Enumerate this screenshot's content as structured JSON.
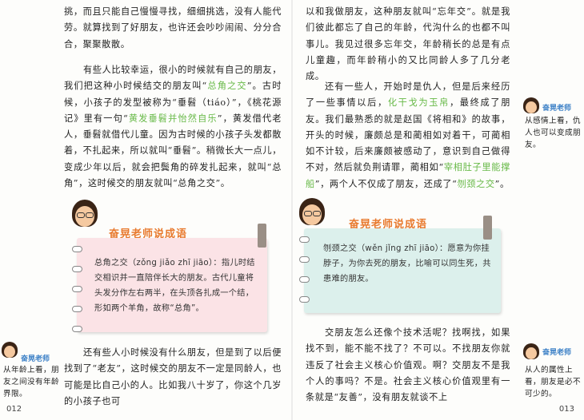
{
  "left_page": {
    "para1": "挑，而且只能自己慢慢寻找，细细挑选，没有人能代劳。就算找到了好朋友，也许还会吵吵闹闹、分分合合，聚聚散散。",
    "para2_a": "有些人比较幸运，很小的时候就有自己的朋友，我们把这种小时候结交的朋友叫“",
    "para2_hl1": "总角之交",
    "para2_b": "”。古时候，小孩子的发型被称为“垂髫（tiáo）”，《桃花源记》里有一句“",
    "para2_hl2": "黄发垂髫并怡然自乐",
    "para2_c": "”，黄发借代老人，垂髫就借代儿童。因为古时候的小孩子头发都散着，不扎起来，所以就叫“垂髫”。稍微长大一点儿，变成少年以后，就会把鬓角的碎发扎起来，就叫“总角”，这时候交的朋友就叫“总角之交”。",
    "para3": "还有些人小时候没有什么朋友，但是到了以后便找到了“老友”，这时候交的朋友不一定是同龄人，也可能是比自己小的人。比如我八十岁了，你这个几岁的小孩子也可",
    "page_number": "012"
  },
  "right_page": {
    "para1": "以和我做朋友，这种朋友就叫“忘年交”。就是我们彼此都忘了自己的年龄，代沟什么的也都不叫事儿。我见过很多忘年交，年龄稍长的总是有点儿童趣，而年龄稍小的又比同龄人多了几分老成。",
    "para2_a": "还有一些人，开始时是仇人，但是后来经历了一些事情以后，",
    "para2_hl1": "化干戈为玉帛",
    "para2_b": "，最终成了朋友。我们最熟悉的就是赵国《将相和》的故事，开头的时候，廉颇总是和蔺相如对着干，可蔺相如不计较，后来廉颇被感动了，意识到自己做得不对，然后就负荆请罪，蔺相如“",
    "para2_hl2": "宰相肚子里能撑船",
    "para2_c": "”，两个人不仅成了朋友，还成了“",
    "para2_hl3": "刎颈之交",
    "para2_d": "”。",
    "para3": "交朋友怎么还像个技术活呢？找啊找，如果找不到，能不能不找了？不可以。不找朋友你就违反了社会主义核心价值观。啊？交朋友不是我个人的事吗？不是。社会主义核心价值观里有一条就是“友善”，没有朋友就谈不上",
    "page_number": "013"
  },
  "box_left": {
    "title": "奋晃老师说成语",
    "text": "总角之交（zǒng jiǎo zhī jiāo）：指儿时结交相识并一直陪伴长大的朋友。古代儿童将头发分作左右两半，在头顶各扎成一个结，形如两个羊角，故称“总角”。"
  },
  "box_right": {
    "title": "奋晃老师说成语",
    "text": "刎颈之交（wěn jǐng zhī jiāo）：愿意为你挂脖子，为你去死的朋友，比喻可以同生死，共患难的朋友。"
  },
  "side_notes": {
    "label": "奋晃老师",
    "left_bottom": "从年龄上看，朋友之间没有年龄界限。",
    "right_top": "从感情上看，仇人也可以变成朋友。",
    "right_bottom": "从人的属性上看，朋友是必不可少的。"
  },
  "colors": {
    "highlight": "#67b947",
    "box_pink": "#fbe3e6",
    "box_green": "#dcf0ec",
    "box_title": "#e8792d",
    "teacher_label": "#3a7fc6"
  }
}
